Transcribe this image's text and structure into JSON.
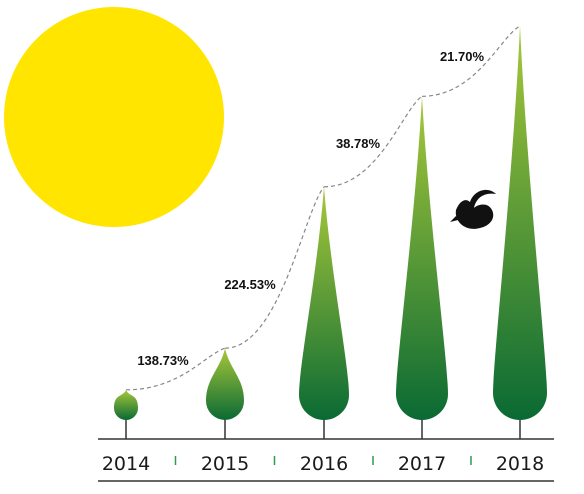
{
  "chart_data": {
    "type": "bar",
    "categories": [
      "2014",
      "2015",
      "2016",
      "2017",
      "2018"
    ],
    "series": [
      {
        "values": [
          1.0,
          2.38,
          7.73,
          10.73,
          13.06
        ]
      }
    ],
    "growth_labels": [
      "138.73%",
      "224.53%",
      "38.78%",
      "21.70%"
    ],
    "title": "",
    "xlabel": "",
    "ylabel": ""
  },
  "colors": {
    "sun": "#ffe500",
    "tree_top": "#a8c83a",
    "tree_bottom": "#0a6a34",
    "bird": "#111111",
    "axis": "#333333",
    "separator_tick": "#2e9d4a",
    "trend_line": "#888888"
  },
  "icons": {
    "sun": "sun-icon",
    "bird": "bird-icon"
  }
}
